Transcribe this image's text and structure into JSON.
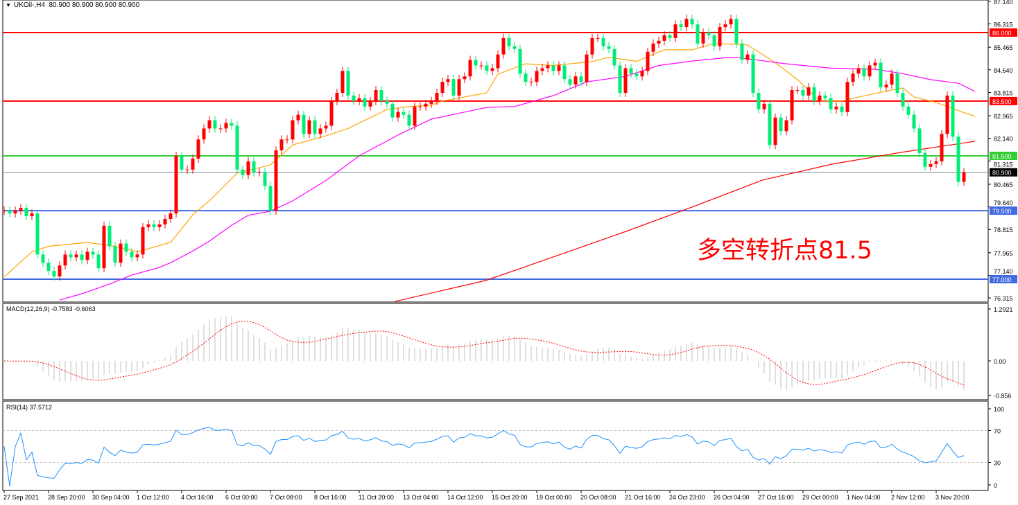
{
  "header": {
    "symbol": "UKOil-,H4",
    "ohlc": "80.900 80.900 80.900 80.900"
  },
  "annotation": "多空转折点81.5",
  "price_axis": [
    "87.140",
    "86.315",
    "85.465",
    "84.640",
    "83.815",
    "82.965",
    "82.140",
    "81.315",
    "80.465",
    "79.640",
    "78.815",
    "77.965",
    "77.140",
    "76.315"
  ],
  "levels": [
    {
      "value": 86.0,
      "label": "86.000",
      "color": "#ff0000"
    },
    {
      "value": 83.5,
      "label": "83.500",
      "color": "#ff0000"
    },
    {
      "value": 81.5,
      "label": "81.500",
      "color": "#32cd32"
    },
    {
      "value": 80.9,
      "label": "80.900",
      "color": "#778899",
      "label_bg": "#000000"
    },
    {
      "value": 79.5,
      "label": "79.500",
      "color": "#4169e1"
    },
    {
      "value": 77.0,
      "label": "77.000",
      "color": "#4169e1"
    }
  ],
  "time_axis": [
    "27 Sep 2021",
    "28 Sep 20:00",
    "30 Sep 04:00",
    "1 Oct 12:00",
    "4 Oct 16:00",
    "6 Oct 00:00",
    "7 Oct 08:00",
    "8 Oct 16:00",
    "11 Oct 20:00",
    "13 Oct 04:00",
    "14 Oct 12:00",
    "15 Oct 20:00",
    "19 Oct 00:00",
    "20 Oct 08:00",
    "21 Oct 16:00",
    "24 Oct 23:00",
    "26 Oct 04:00",
    "27 Oct 16:00",
    "29 Oct 00:00",
    "1 Nov 04:00",
    "2 Nov 12:00",
    "3 Nov 20:00"
  ],
  "macd": {
    "label": "MACD(12,26,9) -0.7583 -0.6063",
    "axis": [
      "1.2921",
      "0.00",
      "-0.856"
    ],
    "hist_color": "#c0c0c0",
    "signal_color": "#ff0000"
  },
  "rsi": {
    "label": "RSI(14) 37.5712",
    "axis": [
      "100",
      "70",
      "30",
      "0"
    ],
    "color": "#1e90ff"
  },
  "colors": {
    "up": "#ff0000",
    "down": "#00ee76",
    "ma_fast": "#ffa500",
    "ma_mid": "#ff00ff",
    "ma_slow": "#ff0000"
  },
  "chart_data": {
    "type": "candlestick",
    "timeframe": "H4",
    "ylim": [
      76.315,
      87.14
    ],
    "close": [
      79.5,
      79.4,
      79.5,
      79.6,
      79.3,
      79.4,
      77.9,
      77.6,
      77.3,
      77.1,
      77.5,
      77.9,
      77.8,
      77.9,
      77.7,
      78.0,
      77.9,
      77.4,
      78.95,
      78.2,
      77.6,
      78.3,
      78.0,
      77.8,
      77.9,
      78.9,
      79.0,
      78.9,
      79.0,
      79.2,
      79.4,
      81.5,
      81.0,
      81.0,
      81.4,
      82.1,
      82.5,
      82.8,
      82.5,
      82.5,
      82.7,
      82.6,
      81.0,
      80.8,
      81.3,
      80.9,
      80.9,
      80.4,
      79.5,
      81.7,
      82.1,
      82.1,
      82.8,
      83.0,
      82.3,
      82.8,
      82.3,
      82.5,
      82.6,
      83.5,
      83.8,
      84.6,
      83.7,
      83.5,
      83.6,
      83.3,
      83.5,
      83.9,
      83.5,
      83.4,
      82.9,
      83.1,
      83.0,
      82.6,
      83.3,
      83.3,
      83.4,
      83.5,
      83.8,
      84.2,
      84.3,
      83.7,
      84.3,
      84.4,
      85.0,
      84.8,
      84.8,
      84.6,
      84.7,
      85.2,
      85.8,
      85.5,
      85.4,
      84.5,
      84.2,
      84.2,
      84.6,
      84.7,
      84.8,
      84.6,
      84.8,
      84.3,
      84.1,
      84.4,
      84.2,
      85.2,
      85.8,
      85.8,
      85.5,
      85.4,
      84.8,
      83.8,
      84.7,
      84.5,
      84.4,
      84.6,
      85.3,
      85.6,
      85.7,
      85.9,
      85.8,
      86.3,
      86.2,
      86.5,
      86.3,
      85.6,
      86.0,
      85.9,
      85.5,
      86.2,
      86.3,
      86.5,
      85.6,
      85.0,
      85.2,
      83.8,
      83.2,
      83.4,
      81.9,
      82.9,
      82.4,
      82.8,
      83.9,
      83.9,
      83.7,
      84.0,
      83.5,
      83.7,
      83.6,
      83.2,
      83.3,
      83.1,
      84.2,
      84.5,
      84.7,
      84.4,
      84.8,
      84.9,
      84.0,
      84.1,
      84.5,
      83.8,
      83.3,
      83.0,
      82.5,
      81.6,
      81.1,
      81.2,
      81.3,
      82.3,
      83.7,
      82.2,
      80.55,
      80.9
    ],
    "ma_fast": [
      [
        0,
        77.08
      ],
      [
        5,
        78.0
      ],
      [
        8,
        78.2
      ],
      [
        15,
        78.34
      ],
      [
        20,
        78.2
      ],
      [
        24,
        78.0
      ],
      [
        30,
        78.34
      ],
      [
        34,
        79.35
      ],
      [
        37,
        79.86
      ],
      [
        42,
        80.87
      ],
      [
        48,
        81.17
      ],
      [
        52,
        81.9
      ],
      [
        58,
        82.23
      ],
      [
        62,
        82.5
      ],
      [
        67,
        82.99
      ],
      [
        69,
        83.2
      ],
      [
        73,
        83.3
      ],
      [
        77,
        83.35
      ],
      [
        79,
        83.5
      ],
      [
        87,
        83.8
      ],
      [
        89,
        84.48
      ],
      [
        94,
        84.86
      ],
      [
        99,
        84.8
      ],
      [
        106,
        84.94
      ],
      [
        109,
        85.1
      ],
      [
        114,
        84.95
      ],
      [
        119,
        85.37
      ],
      [
        124,
        85.37
      ],
      [
        128,
        85.6
      ],
      [
        132,
        85.57
      ],
      [
        134,
        85.55
      ],
      [
        139,
        84.9
      ],
      [
        143,
        84.28
      ],
      [
        147,
        83.5
      ],
      [
        151,
        83.5
      ],
      [
        153,
        83.6
      ],
      [
        157,
        83.78
      ],
      [
        162,
        83.98
      ],
      [
        164,
        83.65
      ],
      [
        168,
        83.45
      ],
      [
        172,
        83.15
      ],
      [
        175,
        82.94
      ]
    ],
    "ma_mid": [
      [
        10,
        76.24
      ],
      [
        14,
        76.47
      ],
      [
        19,
        76.82
      ],
      [
        23,
        77.15
      ],
      [
        28,
        77.43
      ],
      [
        30,
        77.6
      ],
      [
        34,
        78.03
      ],
      [
        37,
        78.39
      ],
      [
        41,
        78.97
      ],
      [
        44,
        79.33
      ],
      [
        48,
        79.48
      ],
      [
        52,
        79.86
      ],
      [
        58,
        80.6
      ],
      [
        64,
        81.5
      ],
      [
        71,
        82.26
      ],
      [
        77,
        82.84
      ],
      [
        84,
        83.14
      ],
      [
        87,
        83.27
      ],
      [
        92,
        83.3
      ],
      [
        99,
        83.7
      ],
      [
        105,
        84.2
      ],
      [
        112,
        84.4
      ],
      [
        118,
        84.8
      ],
      [
        124,
        84.96
      ],
      [
        131,
        85.1
      ],
      [
        133,
        85.07
      ],
      [
        141,
        84.86
      ],
      [
        149,
        84.7
      ],
      [
        157,
        84.66
      ],
      [
        162,
        84.5
      ],
      [
        167,
        84.28
      ],
      [
        172,
        84.15
      ],
      [
        175,
        83.85
      ]
    ],
    "ma_slow": [
      [
        70.5,
        76.19
      ],
      [
        86.75,
        76.95
      ],
      [
        99.25,
        77.83
      ],
      [
        111.75,
        78.72
      ],
      [
        124.25,
        79.65
      ],
      [
        136.75,
        80.62
      ],
      [
        149.25,
        81.2
      ],
      [
        161.75,
        81.63
      ],
      [
        175,
        82.03
      ]
    ]
  }
}
